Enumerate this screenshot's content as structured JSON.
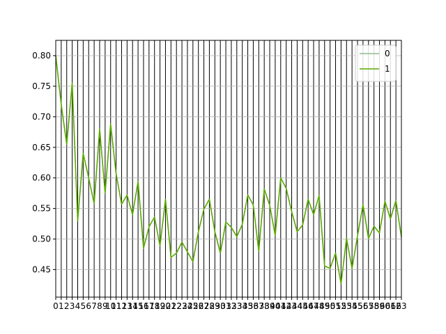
{
  "chart_data": {
    "type": "line",
    "title": "",
    "xlabel": "",
    "ylabel": "",
    "x": [
      0,
      1,
      2,
      3,
      4,
      5,
      6,
      7,
      8,
      9,
      10,
      11,
      12,
      13,
      14,
      15,
      16,
      17,
      18,
      19,
      20,
      21,
      22,
      23,
      24,
      25,
      26,
      27,
      28,
      29,
      30,
      31,
      32,
      33,
      34,
      35,
      36,
      37,
      38,
      39,
      40,
      41,
      42,
      43,
      44,
      45,
      46,
      47,
      48,
      49,
      50,
      51,
      52,
      53,
      54,
      55,
      56,
      57,
      58,
      59,
      60,
      61,
      62,
      63
    ],
    "xlim": [
      0,
      63
    ],
    "ylim": [
      0.405,
      0.825
    ],
    "yticks": [
      "0.45",
      "0.50",
      "0.55",
      "0.60",
      "0.65",
      "0.70",
      "0.75",
      "0.80"
    ],
    "xticks": [
      "0",
      "1",
      "2",
      "3",
      "4",
      "5",
      "6",
      "7",
      "8",
      "9",
      "10",
      "11",
      "12",
      "13",
      "14",
      "15",
      "16",
      "17",
      "18",
      "19",
      "20",
      "21",
      "22",
      "23",
      "24",
      "25",
      "26",
      "27",
      "28",
      "29",
      "30",
      "31",
      "32",
      "33",
      "34",
      "35",
      "36",
      "37",
      "38",
      "39",
      "40",
      "41",
      "42",
      "43",
      "44",
      "45",
      "46",
      "47",
      "48",
      "49",
      "50",
      "51",
      "52",
      "53",
      "54",
      "55",
      "56",
      "57",
      "58",
      "59",
      "60",
      "61",
      "62",
      "63"
    ],
    "vertical_gridlines": true,
    "horizontal_gridlines": true,
    "legend_position": "top-right",
    "series": [
      {
        "name": "0",
        "color": "#8fbc8f",
        "values": [
          0.8,
          0.72,
          0.655,
          0.755,
          0.53,
          0.64,
          0.6,
          0.558,
          0.68,
          0.575,
          0.688,
          0.607,
          0.557,
          0.572,
          0.54,
          0.594,
          0.485,
          0.52,
          0.536,
          0.489,
          0.565,
          0.47,
          0.477,
          0.495,
          0.479,
          0.463,
          0.512,
          0.549,
          0.565,
          0.512,
          0.477,
          0.528,
          0.519,
          0.504,
          0.524,
          0.572,
          0.556,
          0.48,
          0.582,
          0.555,
          0.506,
          0.6,
          0.583,
          0.545,
          0.512,
          0.523,
          0.565,
          0.54,
          0.571,
          0.456,
          0.452,
          0.477,
          0.427,
          0.501,
          0.452,
          0.505,
          0.556,
          0.501,
          0.521,
          0.51,
          0.562,
          0.533,
          0.563,
          0.503
        ]
      },
      {
        "name": "1",
        "color": "#5aaa00",
        "values": [
          0.8,
          0.72,
          0.655,
          0.755,
          0.53,
          0.64,
          0.6,
          0.558,
          0.68,
          0.575,
          0.688,
          0.607,
          0.557,
          0.572,
          0.54,
          0.594,
          0.485,
          0.52,
          0.536,
          0.489,
          0.565,
          0.47,
          0.477,
          0.495,
          0.479,
          0.463,
          0.512,
          0.549,
          0.565,
          0.512,
          0.477,
          0.528,
          0.519,
          0.504,
          0.524,
          0.572,
          0.556,
          0.48,
          0.582,
          0.555,
          0.506,
          0.6,
          0.583,
          0.545,
          0.512,
          0.523,
          0.565,
          0.54,
          0.571,
          0.456,
          0.452,
          0.477,
          0.427,
          0.501,
          0.452,
          0.505,
          0.556,
          0.501,
          0.521,
          0.51,
          0.562,
          0.533,
          0.563,
          0.503
        ]
      }
    ]
  }
}
